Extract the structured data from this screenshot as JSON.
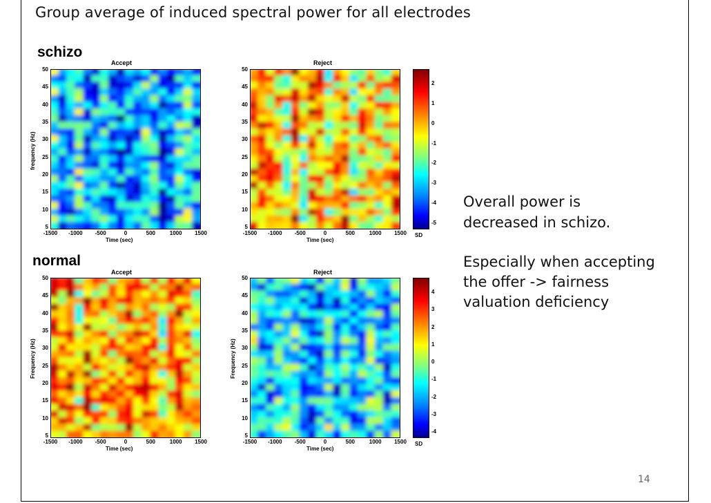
{
  "slide": {
    "title": "Group average of induced spectral power for all electrodes",
    "page_number": "14"
  },
  "notes": {
    "line1": "Overall power is",
    "line2": "decreased in schizo.",
    "line3": "Especially when accepting",
    "line4": "the offer -> fairness",
    "line5": "valuation deficiency"
  },
  "groups": [
    {
      "label": "schizo",
      "panels": [
        {
          "title": "Accept",
          "ylabel": "frequency (Hz)",
          "xlabel": "Time (sec)",
          "mean_level": "low"
        },
        {
          "title": "Reject",
          "ylabel": "",
          "xlabel": "Time (sec)",
          "mean_level": "high"
        }
      ],
      "colorbar": {
        "ticks": [
          "2",
          "1",
          "0",
          "-1",
          "-2",
          "-3",
          "-4",
          "-5"
        ],
        "unit": "SD"
      }
    },
    {
      "label": "normal",
      "panels": [
        {
          "title": "Accept",
          "ylabel": "Frequency (Hz)",
          "xlabel": "Time (sec)",
          "mean_level": "high"
        },
        {
          "title": "Reject",
          "ylabel": "Frequency (Hz)",
          "xlabel": "Time (sec)",
          "mean_level": "low"
        }
      ],
      "colorbar": {
        "ticks": [
          "4",
          "3",
          "2",
          "1",
          "0",
          "-1",
          "-2",
          "-3",
          "-4"
        ],
        "unit": "SD"
      }
    }
  ],
  "axes": {
    "y_ticks": [
      "50",
      "45",
      "40",
      "35",
      "30",
      "25",
      "20",
      "15",
      "10",
      "5"
    ],
    "x_ticks": [
      "-1500",
      "-1000",
      "-500",
      "0",
      "500",
      "1000",
      "1500"
    ]
  },
  "colors": {
    "hot": "#ff0000",
    "cold": "#0000ff",
    "mid": "#80ff80"
  }
}
